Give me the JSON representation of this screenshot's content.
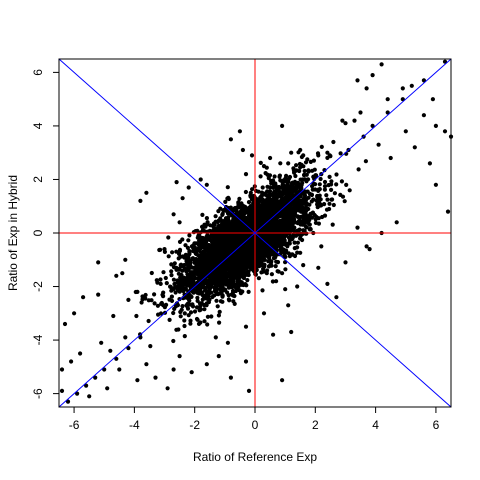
{
  "chart_data": {
    "type": "scatter",
    "title": "",
    "xlabel": "Ratio of Reference Exp",
    "ylabel": "Ratio of Exp in Hybrid",
    "xlim": [
      -6.5,
      6.5
    ],
    "ylim": [
      -6.5,
      6.5
    ],
    "x_ticks": [
      "-6",
      "-4",
      "-2",
      "0",
      "2",
      "4",
      "6"
    ],
    "y_ticks": [
      "-6",
      "-4",
      "-2",
      "0",
      "2",
      "4",
      "6"
    ],
    "grid": false,
    "legend": "none",
    "point_color": "#000000",
    "reference_lines": [
      {
        "kind": "hline",
        "y": 0,
        "color": "#ff0000"
      },
      {
        "kind": "vline",
        "x": 0,
        "color": "#ff0000"
      },
      {
        "kind": "abline",
        "intercept": 0,
        "slope": 1,
        "color": "#0000ff"
      },
      {
        "kind": "abline",
        "intercept": 0,
        "slope": -1,
        "color": "#0000ff"
      }
    ],
    "distribution": {
      "n": 4000,
      "center": [
        -0.3,
        -0.3
      ],
      "major_sd": 1.45,
      "minor_sd": 0.55,
      "axis_angle_deg": 45
    },
    "points": [
      [
        -6.2,
        -6.3
      ],
      [
        -5.9,
        -6.0
      ],
      [
        -5.6,
        -5.7
      ],
      [
        -5.3,
        -5.4
      ],
      [
        -5.0,
        -5.1
      ],
      [
        -4.6,
        -4.7
      ],
      [
        -4.2,
        -4.3
      ],
      [
        -3.8,
        -3.9
      ],
      [
        -1.9,
        -2.0
      ],
      [
        0.6,
        0.6
      ],
      [
        1.2,
        1.2
      ],
      [
        2.2,
        2.2
      ],
      [
        3.1,
        3.1
      ],
      [
        3.6,
        3.6
      ],
      [
        4.4,
        4.5
      ],
      [
        4.9,
        5.0
      ],
      [
        5.6,
        5.7
      ],
      [
        6.3,
        6.4
      ],
      [
        -4.9,
        -5.8
      ],
      [
        -4.5,
        -5.1
      ],
      [
        -3.9,
        -5.5
      ],
      [
        -3.6,
        -4.9
      ],
      [
        -3.3,
        -5.4
      ],
      [
        -2.7,
        -5.1
      ],
      [
        -2.5,
        -4.6
      ],
      [
        -2.1,
        -5.2
      ],
      [
        -2.9,
        -5.8
      ],
      [
        -5.1,
        -4.1
      ],
      [
        -4.8,
        -4.4
      ],
      [
        -6.3,
        -3.4
      ],
      [
        -6.0,
        -3.0
      ],
      [
        -5.7,
        -2.4
      ],
      [
        -5.2,
        -2.3
      ],
      [
        -4.7,
        -3.1
      ],
      [
        -4.3,
        -3.9
      ],
      [
        -6.1,
        -4.8
      ],
      [
        -6.4,
        -5.9
      ],
      [
        -6.4,
        -5.1
      ],
      [
        -5.5,
        -6.1
      ],
      [
        -5.8,
        -4.5
      ],
      [
        -3.9,
        -2.2
      ],
      [
        -4.2,
        -2.5
      ],
      [
        -3.8,
        1.2
      ],
      [
        -3.6,
        1.5
      ],
      [
        -2.6,
        1.9
      ],
      [
        -2.4,
        1.3
      ],
      [
        -2.2,
        1.7
      ],
      [
        -1.8,
        2.0
      ],
      [
        -1.6,
        1.8
      ],
      [
        -2.5,
        0.4
      ],
      [
        -2.7,
        0.7
      ],
      [
        -3.0,
        -0.6
      ],
      [
        -4.3,
        -1.0
      ],
      [
        -4.4,
        -1.5
      ],
      [
        -5.2,
        -1.1
      ],
      [
        -4.6,
        -1.6
      ],
      [
        -0.4,
        3.1
      ],
      [
        -0.8,
        3.5
      ],
      [
        -0.5,
        3.8
      ],
      [
        -0.1,
        2.9
      ],
      [
        0.3,
        2.5
      ],
      [
        0.5,
        2.8
      ],
      [
        -0.3,
        2.2
      ],
      [
        1.2,
        3.0
      ],
      [
        1.5,
        3.1
      ],
      [
        1.1,
        2.6
      ],
      [
        1.6,
        2.9
      ],
      [
        0.9,
        4.0
      ],
      [
        2.1,
        2.9
      ],
      [
        2.4,
        3.0
      ],
      [
        2.6,
        3.4
      ],
      [
        2.9,
        4.2
      ],
      [
        3.0,
        4.1
      ],
      [
        3.3,
        4.2
      ],
      [
        3.4,
        5.7
      ],
      [
        3.5,
        4.5
      ],
      [
        3.7,
        5.4
      ],
      [
        3.9,
        5.9
      ],
      [
        3.9,
        4.0
      ],
      [
        4.2,
        6.3
      ],
      [
        4.4,
        5.0
      ],
      [
        4.9,
        5.4
      ],
      [
        5.2,
        5.5
      ],
      [
        5.6,
        4.4
      ],
      [
        5.9,
        5.0
      ],
      [
        6.0,
        4.0
      ],
      [
        6.3,
        3.8
      ],
      [
        6.5,
        3.6
      ],
      [
        5.0,
        3.8
      ],
      [
        5.3,
        3.2
      ],
      [
        5.8,
        2.6
      ],
      [
        6.0,
        1.8
      ],
      [
        6.4,
        0.8
      ],
      [
        4.5,
        2.8
      ],
      [
        4.1,
        3.3
      ],
      [
        0.4,
        -1.4
      ],
      [
        0.7,
        -1.8
      ],
      [
        1.0,
        -2.1
      ],
      [
        1.4,
        -2.0
      ],
      [
        0.9,
        -1.5
      ],
      [
        1.6,
        -1.2
      ],
      [
        2.1,
        -1.3
      ],
      [
        2.2,
        -0.5
      ],
      [
        2.7,
        -2.4
      ],
      [
        3.4,
        0.2
      ],
      [
        3.7,
        -0.5
      ],
      [
        3.8,
        -0.6
      ],
      [
        4.2,
        0.0
      ],
      [
        4.7,
        0.4
      ],
      [
        1.2,
        -3.7
      ],
      [
        0.9,
        -5.5
      ],
      [
        0.6,
        -3.8
      ],
      [
        -0.3,
        -4.8
      ],
      [
        -0.8,
        -5.4
      ],
      [
        -1.2,
        -4.6
      ],
      [
        -1.6,
        -4.9
      ],
      [
        -1.3,
        -3.9
      ],
      [
        -0.9,
        -4.1
      ],
      [
        -0.3,
        -3.5
      ],
      [
        0.3,
        -3.0
      ],
      [
        1.1,
        -2.7
      ],
      [
        2.4,
        -1.9
      ],
      [
        3.0,
        -1.1
      ],
      [
        -0.2,
        -5.9
      ]
    ]
  }
}
